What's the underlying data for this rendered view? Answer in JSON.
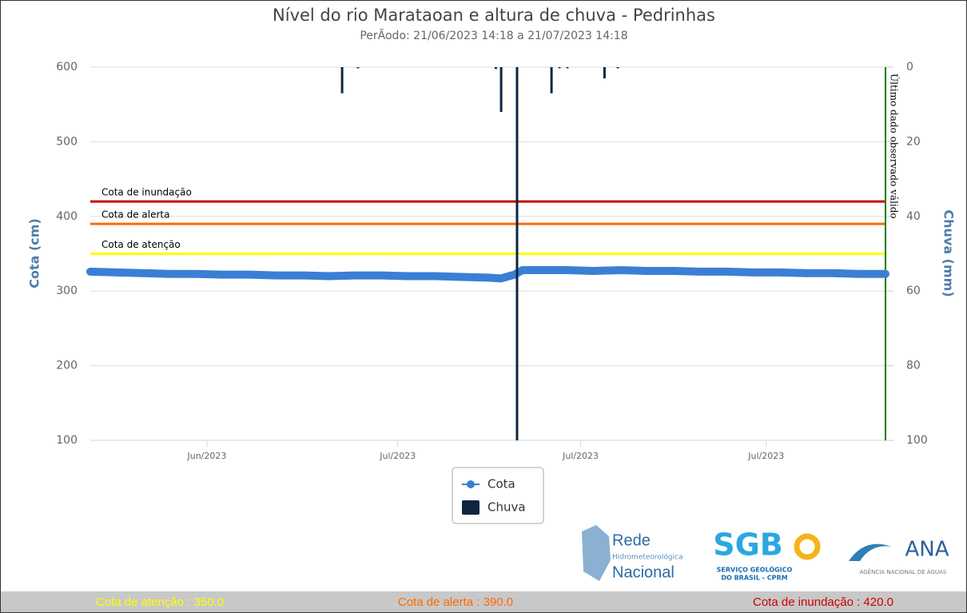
{
  "chart_data": {
    "type": "line",
    "title": "Nível do rio Marataoan e altura de chuva - Pedrinhas",
    "subtitle": "PerÃodo: 21/06/2023 14:18 a 21/07/2023 14:18",
    "y_label": "Cota (cm)",
    "y2_label": "Chuva (mm)",
    "xlim": [
      0,
      30
    ],
    "xticks": [
      {
        "value": 4.4,
        "label": "Jun/2023"
      },
      {
        "value": 11.6,
        "label": "Jul/2023"
      },
      {
        "value": 18.5,
        "label": "Jul/2023"
      },
      {
        "value": 25.5,
        "label": "Jul/2023"
      }
    ],
    "ylim": [
      100,
      600
    ],
    "yticks": [
      100,
      200,
      300,
      400,
      500,
      600
    ],
    "y2lim": [
      100,
      0
    ],
    "y2ticks": [
      0,
      20,
      40,
      60,
      80,
      100
    ],
    "grid": true,
    "series": [
      {
        "name": "Cota",
        "type": "line",
        "color": "#3a7fd5",
        "x": [
          0,
          1,
          2,
          3,
          4,
          5,
          6,
          7,
          8,
          9,
          10,
          11,
          12,
          13,
          14,
          15,
          15.5,
          16,
          16.3,
          17,
          18,
          19,
          20,
          21,
          22,
          23,
          24,
          25,
          26,
          27,
          28,
          29,
          30
        ],
        "values": [
          326,
          325,
          324,
          323,
          323,
          322,
          322,
          321,
          321,
          320,
          321,
          321,
          320,
          320,
          319,
          318,
          317,
          322,
          328,
          328,
          328,
          327,
          328,
          327,
          327,
          326,
          326,
          325,
          325,
          324,
          324,
          323,
          323
        ]
      },
      {
        "name": "Chuva",
        "type": "bar",
        "axis": "y2",
        "color": "#10253f",
        "x": [
          9.5,
          10.1,
          15.3,
          15.5,
          16.1,
          17.4,
          17.7,
          18.0,
          19.4,
          19.9
        ],
        "values": [
          7,
          0.3,
          0.5,
          12,
          100,
          7,
          0.3,
          0.3,
          3,
          0.3
        ]
      }
    ],
    "thresholds": [
      {
        "label": "Cota de inundação",
        "value": 420,
        "color": "#cc0000"
      },
      {
        "label": "Cota de alerta",
        "value": 390,
        "color": "#ff6a00"
      },
      {
        "label": "Cota de atenção",
        "value": 350,
        "color": "#ffff00"
      }
    ],
    "last_valid": {
      "label": "Último dado observado válido",
      "x": 30,
      "color": "#008000"
    },
    "footer": [
      {
        "text": "Cota de atenção : 350.0",
        "color": "#ffff00"
      },
      {
        "text": "Cota de alerta : 390.0",
        "color": "#ff6a00"
      },
      {
        "text": "Cota de inundação : 420.0",
        "color": "#cc0000"
      }
    ],
    "logos": {
      "rede": [
        "Rede",
        "Hidrometeorológica",
        "Nacional"
      ],
      "sgb": [
        "SGB",
        "SERVIÇO GEOLÓGICO",
        "DO BRASIL - CPRM"
      ],
      "ana": [
        "ANA",
        "AGÊNCIA NACIONAL DE ÁGUAS"
      ]
    }
  }
}
